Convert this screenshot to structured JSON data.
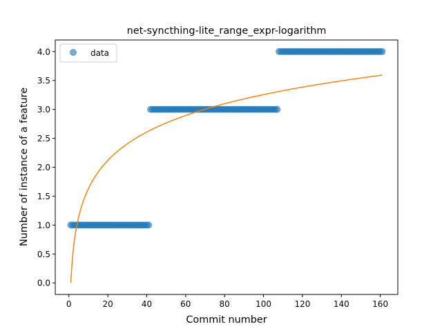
{
  "chart_data": {
    "type": "scatter",
    "title": "net-syncthing-lite_range_expr-logarithm",
    "xlabel": "Commit number",
    "ylabel": "Number of instance of a feature",
    "xlim": [
      -7,
      169
    ],
    "ylim": [
      -0.2,
      4.2
    ],
    "xticks": [
      0,
      20,
      40,
      60,
      80,
      100,
      120,
      140,
      160
    ],
    "yticks": [
      0.0,
      0.5,
      1.0,
      1.5,
      2.0,
      2.5,
      3.0,
      3.5,
      4.0
    ],
    "xtick_labels": [
      "0",
      "20",
      "40",
      "60",
      "80",
      "100",
      "120",
      "140",
      "160"
    ],
    "ytick_labels": [
      "0.0",
      "0.5",
      "1.0",
      "1.5",
      "2.0",
      "2.5",
      "3.0",
      "3.5",
      "4.0"
    ],
    "legend": {
      "position": "top-left",
      "entries": [
        "data"
      ]
    },
    "grid": false,
    "series": [
      {
        "name": "data",
        "kind": "scatter",
        "color": "#1f77b4",
        "alpha": 0.6,
        "segments": [
          {
            "x_start": 1,
            "x_end": 41,
            "y": 1
          },
          {
            "x_start": 42,
            "x_end": 107,
            "y": 3
          },
          {
            "x_start": 108,
            "x_end": 161,
            "y": 4
          }
        ]
      },
      {
        "kind": "line",
        "color": "#ff7f0e",
        "x_range": [
          1,
          161
        ],
        "coefficient": 0.707
      }
    ]
  }
}
